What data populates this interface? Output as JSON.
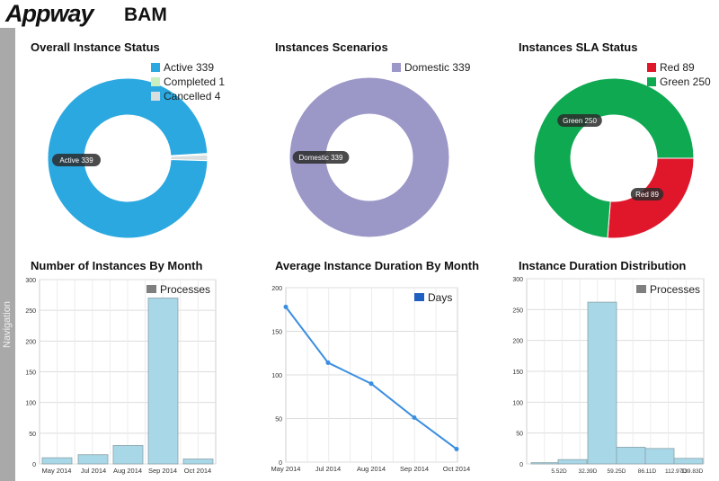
{
  "app": {
    "logo": "Appway",
    "title": "BAM"
  },
  "nav": {
    "label": "Navigation"
  },
  "panels": [
    {
      "title": "Overall Instance Status"
    },
    {
      "title": "Instances Scenarios"
    },
    {
      "title": "Instances SLA Status"
    },
    {
      "title": "Number of Instances By Month"
    },
    {
      "title": "Average Instance Duration By Month"
    },
    {
      "title": "Instance Duration Distribution"
    }
  ],
  "chart_data": [
    {
      "type": "pie",
      "donut": true,
      "title": "Overall Instance Status",
      "legend": "top-right",
      "slices": [
        {
          "label": "Active",
          "value": 339,
          "color": "#2ba8e0",
          "tag": "Active 339"
        },
        {
          "label": "Completed",
          "value": 1,
          "color": "#c8f0c0",
          "tag": ""
        },
        {
          "label": "Cancelled",
          "value": 4,
          "color": "#d8dde0",
          "tag": ""
        }
      ],
      "legend_items": [
        "Active 339",
        "Completed 1",
        "Cancelled 4"
      ]
    },
    {
      "type": "pie",
      "donut": true,
      "title": "Instances Scenarios",
      "legend": "top-right",
      "slices": [
        {
          "label": "Domestic",
          "value": 339,
          "color": "#9b97c7",
          "tag": "Domestic 339"
        }
      ],
      "legend_items": [
        "Domestic 339"
      ]
    },
    {
      "type": "pie",
      "donut": true,
      "title": "Instances SLA Status",
      "legend": "top-right",
      "slices": [
        {
          "label": "Red",
          "value": 89,
          "color": "#e0162b",
          "tag": "Red 89"
        },
        {
          "label": "Green",
          "value": 250,
          "color": "#0fa952",
          "tag": "Green 250"
        }
      ],
      "legend_items": [
        "Red 89",
        "Green 250"
      ]
    },
    {
      "type": "bar",
      "title": "Number of Instances By Month",
      "legend": "top-right",
      "categories": [
        "May 2014",
        "Jul 2014",
        "Aug 2014",
        "Sep 2014",
        "Oct 2014"
      ],
      "series": [
        {
          "name": "Processes",
          "values": [
            10,
            15,
            30,
            270,
            8
          ]
        }
      ],
      "ylim": [
        0,
        300
      ],
      "yticks": [
        "0",
        "50",
        "100",
        "150",
        "200",
        "250",
        "300"
      ],
      "grid": true,
      "color": "#a8d8e8"
    },
    {
      "type": "line",
      "title": "Average Instance Duration By Month",
      "legend": "top-right",
      "categories": [
        "May 2014",
        "Jul 2014",
        "Aug 2014",
        "Sep 2014",
        "Oct 2014"
      ],
      "series": [
        {
          "name": "Days",
          "values": [
            178,
            114,
            90,
            51,
            15
          ]
        }
      ],
      "ylim": [
        0,
        200
      ],
      "yticks": [
        "0",
        "50",
        "100",
        "150",
        "200"
      ],
      "grid": true,
      "color": "#3a8ee0"
    },
    {
      "type": "bar",
      "title": "Instance Duration Distribution",
      "legend": "top-right",
      "categories": [
        "5.52D",
        "32.39D",
        "59.25D",
        "86.11D",
        "112.97D",
        "139.83D"
      ],
      "series": [
        {
          "name": "Processes",
          "values": [
            2,
            7,
            262,
            27,
            25,
            9
          ]
        }
      ],
      "ylim": [
        0,
        300
      ],
      "yticks": [
        "0",
        "50",
        "100",
        "150",
        "200",
        "250",
        "300"
      ],
      "grid": true,
      "color": "#a8d8e8"
    }
  ]
}
